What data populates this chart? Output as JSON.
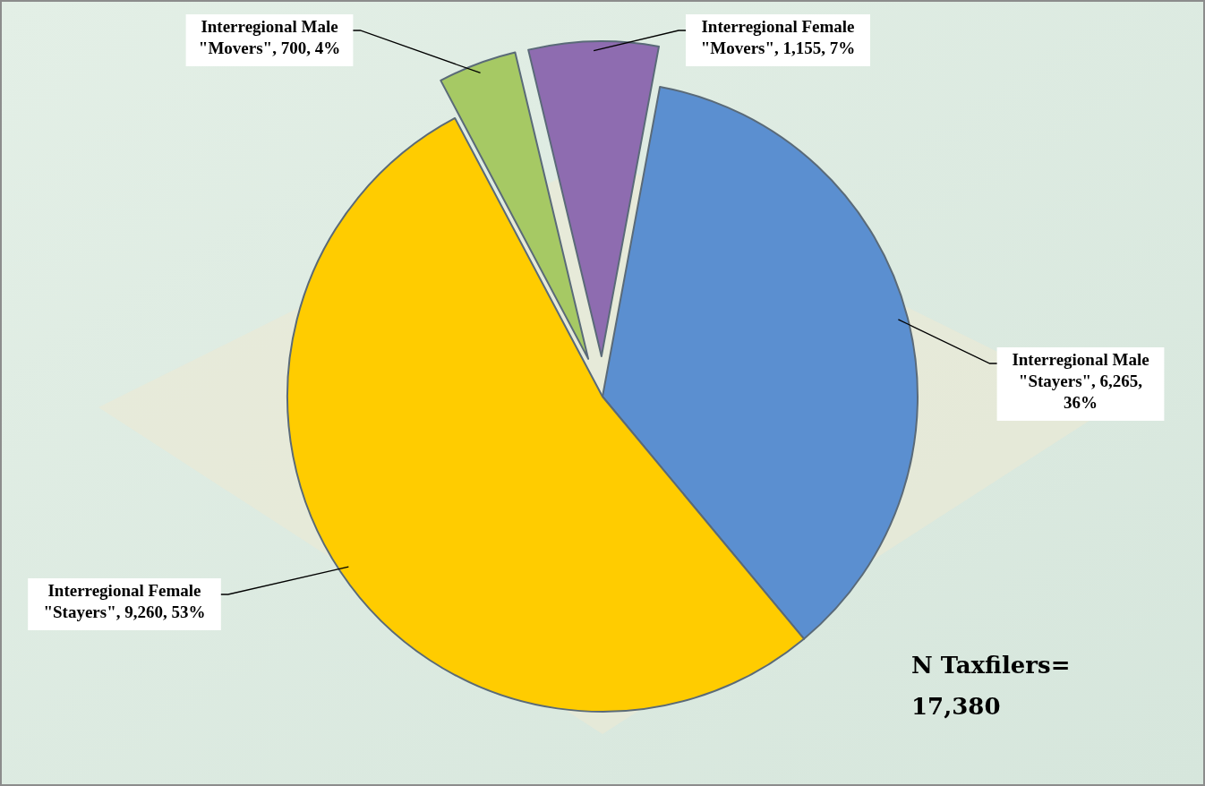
{
  "chart_data": {
    "type": "pie",
    "categories": [
      "Interregional Male \"Stayers\"",
      "Interregional Female \"Stayers\"",
      "Interregional Male \"Movers\"",
      "Interregional Female \"Movers\""
    ],
    "values": [
      6265,
      9260,
      700,
      1155
    ],
    "colors": [
      "#5b8fd0",
      "#ffcc00",
      "#a6c964",
      "#8e6cb0"
    ],
    "value_labels": [
      "6,265, 36%",
      "9,260, 53%",
      "700, 4%",
      "1,155, 7%"
    ],
    "annotations": [
      "N Taxfilers=\n17,380"
    ],
    "legend": false
  }
}
